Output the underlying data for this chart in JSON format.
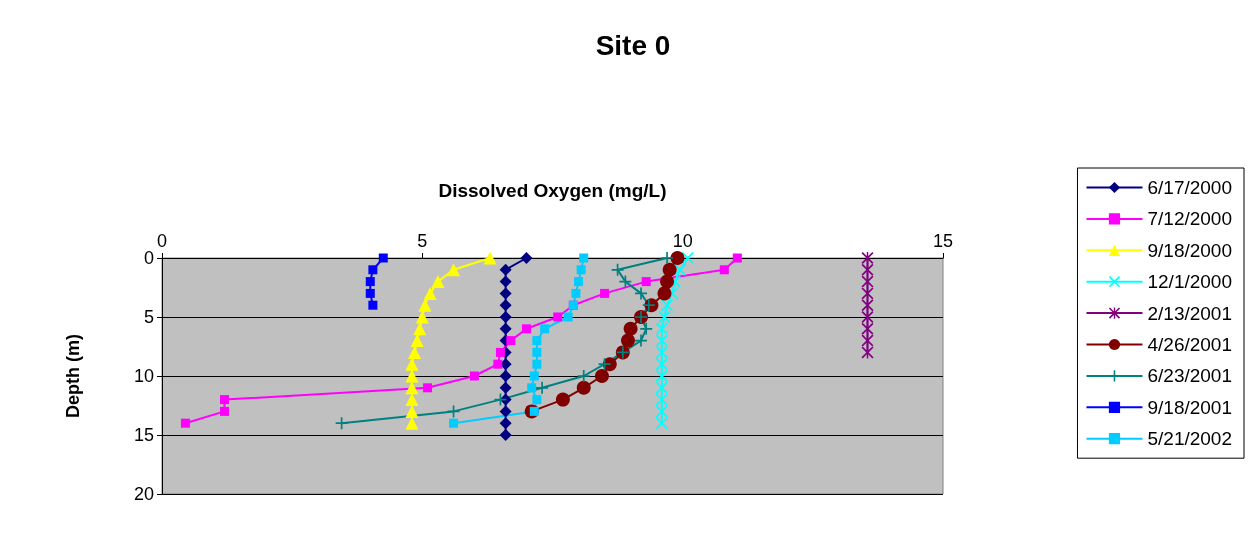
{
  "chart_data": {
    "type": "line",
    "title": "Site 0",
    "xlabel": "Dissolved Oxygen (mg/L)",
    "ylabel": "Depth (m)",
    "orientation": "horizontal",
    "xlim": [
      0,
      15
    ],
    "xticks": [
      0,
      5,
      10,
      15
    ],
    "ylim": [
      20,
      0
    ],
    "yticks": [
      0,
      5,
      10,
      15,
      20
    ],
    "grid": "y",
    "legend": "right",
    "series": [
      {
        "name": "6/17/2000",
        "color": "#000080",
        "marker": "diamond",
        "x": [
          0,
          1,
          2,
          3,
          4,
          5,
          6,
          7,
          8,
          9,
          10,
          11,
          12,
          13,
          14,
          15
        ],
        "values": [
          7.0,
          6.6,
          6.6,
          6.6,
          6.6,
          6.6,
          6.6,
          6.6,
          6.6,
          6.6,
          6.6,
          6.6,
          6.6,
          6.6,
          6.6,
          6.6
        ]
      },
      {
        "name": "7/12/2000",
        "color": "#ff00ff",
        "marker": "square",
        "x": [
          0,
          1,
          2,
          3,
          4,
          5,
          6,
          7,
          8,
          9,
          10,
          11,
          12,
          13,
          14
        ],
        "values": [
          11.05,
          10.8,
          9.3,
          8.5,
          7.9,
          7.6,
          7.0,
          6.7,
          6.5,
          6.45,
          6.0,
          5.1,
          1.2,
          1.2,
          0.45
        ]
      },
      {
        "name": "9/18/2000",
        "color": "#ffff00",
        "marker": "triangle",
        "x": [
          0,
          1,
          2,
          3,
          4,
          5,
          6,
          7,
          8,
          9,
          10,
          11,
          12,
          13,
          14
        ],
        "values": [
          6.3,
          5.6,
          5.3,
          5.15,
          5.05,
          5.0,
          4.95,
          4.9,
          4.85,
          4.8,
          4.8,
          4.8,
          4.8,
          4.8,
          4.8
        ]
      },
      {
        "name": "12/1/2000",
        "color": "#00ffff",
        "marker": "cross",
        "x": [
          0,
          1,
          2,
          3,
          4,
          5,
          6,
          7,
          8,
          9,
          10,
          11,
          12,
          13,
          14
        ],
        "values": [
          10.1,
          9.95,
          9.85,
          9.8,
          9.7,
          9.65,
          9.6,
          9.6,
          9.6,
          9.6,
          9.6,
          9.6,
          9.6,
          9.6,
          9.6
        ]
      },
      {
        "name": "2/13/2001",
        "color": "#800080",
        "marker": "star",
        "x": [
          0,
          1,
          2,
          3,
          4,
          5,
          6,
          7,
          8
        ],
        "values": [
          13.55,
          13.55,
          13.55,
          13.55,
          13.55,
          13.55,
          13.55,
          13.55,
          13.55
        ]
      },
      {
        "name": "4/26/2001",
        "color": "#800000",
        "marker": "circle",
        "x": [
          0,
          1,
          2,
          3,
          4,
          5,
          6,
          7,
          8,
          9,
          10,
          11,
          12,
          13
        ],
        "values": [
          9.9,
          9.75,
          9.7,
          9.65,
          9.4,
          9.2,
          9.0,
          8.95,
          8.85,
          8.6,
          8.45,
          8.1,
          7.7,
          7.1
        ]
      },
      {
        "name": "6/23/2001",
        "color": "#008080",
        "marker": "plus",
        "x": [
          0,
          1,
          2,
          3,
          4,
          5,
          6,
          7,
          8,
          9,
          10,
          11,
          12,
          13,
          14
        ],
        "values": [
          9.7,
          8.75,
          8.9,
          9.2,
          9.35,
          9.2,
          9.3,
          9.2,
          8.85,
          8.5,
          8.1,
          7.3,
          6.5,
          5.6,
          3.45
        ]
      },
      {
        "name": "9/18/2001",
        "color": "#0000ff",
        "marker": "square",
        "x": [
          0,
          1,
          2,
          3,
          4
        ],
        "values": [
          4.25,
          4.05,
          4.0,
          4.0,
          4.05
        ]
      },
      {
        "name": "5/21/2002",
        "color": "#00ccff",
        "marker": "square",
        "x": [
          0,
          1,
          2,
          3,
          4,
          5,
          6,
          7,
          8,
          9,
          10,
          11,
          12,
          13,
          14
        ],
        "values": [
          8.1,
          8.05,
          8.0,
          7.95,
          7.9,
          7.8,
          7.35,
          7.2,
          7.2,
          7.2,
          7.15,
          7.1,
          7.2,
          7.15,
          5.6
        ]
      }
    ]
  }
}
